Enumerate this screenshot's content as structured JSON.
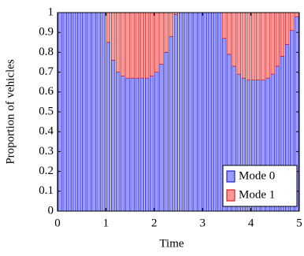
{
  "chart_data": {
    "type": "stacked-bar",
    "x_label": "Time",
    "y_label": "Proportion of vehicles",
    "x": [
      0.05,
      0.15,
      0.25,
      0.35,
      0.45,
      0.55,
      0.65,
      0.75,
      0.85,
      0.95,
      1.05,
      1.15,
      1.25,
      1.35,
      1.45,
      1.55,
      1.65,
      1.75,
      1.85,
      1.95,
      2.05,
      2.15,
      2.25,
      2.35,
      2.45,
      2.55,
      2.65,
      2.75,
      2.85,
      2.95,
      3.05,
      3.15,
      3.25,
      3.35,
      3.45,
      3.55,
      3.65,
      3.75,
      3.85,
      3.95,
      4.05,
      4.15,
      4.25,
      4.35,
      4.45,
      4.55,
      4.65,
      4.75,
      4.85,
      4.95
    ],
    "bar_width": 0.075,
    "series": [
      {
        "name": "Mode 0",
        "color": "#9999ff",
        "edge": "#0000cc",
        "values": [
          1,
          1,
          1,
          1,
          1,
          1,
          1,
          1,
          1,
          1,
          0.85,
          0.76,
          0.7,
          0.68,
          0.67,
          0.67,
          0.67,
          0.67,
          0.67,
          0.68,
          0.7,
          0.74,
          0.8,
          0.88,
          0.99,
          1,
          1,
          1,
          1,
          1,
          1,
          1,
          1,
          1,
          0.87,
          0.79,
          0.73,
          0.69,
          0.67,
          0.66,
          0.66,
          0.66,
          0.66,
          0.67,
          0.69,
          0.73,
          0.78,
          0.84,
          0.91,
          0.98
        ]
      },
      {
        "name": "Mode 1",
        "color": "#ff9999",
        "edge": "#cc0000",
        "values": [
          0,
          0,
          0,
          0,
          0,
          0,
          0,
          0,
          0,
          0,
          0.15,
          0.24,
          0.3,
          0.32,
          0.33,
          0.33,
          0.33,
          0.33,
          0.33,
          0.32,
          0.3,
          0.26,
          0.2,
          0.12,
          0.01,
          0,
          0,
          0,
          0,
          0,
          0,
          0,
          0,
          0,
          0.13,
          0.21,
          0.27,
          0.31,
          0.33,
          0.34,
          0.34,
          0.34,
          0.34,
          0.33,
          0.31,
          0.27,
          0.22,
          0.16,
          0.09,
          0.02
        ]
      }
    ],
    "xlim": [
      0,
      5
    ],
    "ylim": [
      0,
      1
    ],
    "xticks": [
      0,
      1,
      2,
      3,
      4,
      5
    ],
    "yticks": [
      0,
      0.1,
      0.2,
      0.3,
      0.4,
      0.5,
      0.6,
      0.7,
      0.8,
      0.9,
      1
    ],
    "legend": "lower right"
  }
}
